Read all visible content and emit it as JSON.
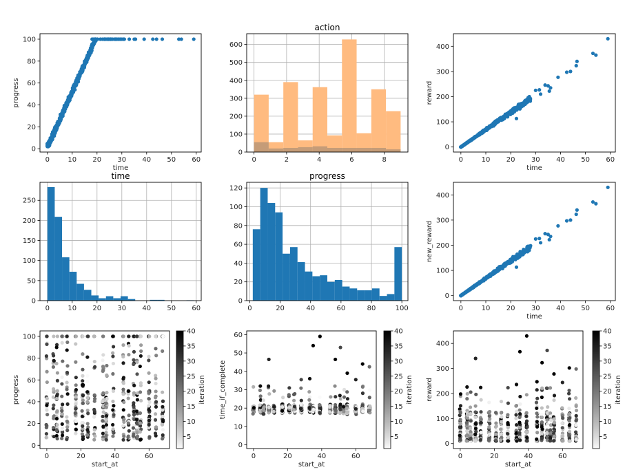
{
  "chart_data": [
    {
      "id": "p1",
      "type": "scatter",
      "title": "",
      "xlabel": "time",
      "ylabel": "progress",
      "xlim": [
        -3,
        62
      ],
      "ylim": [
        -3,
        105
      ],
      "xticks": [
        0,
        10,
        20,
        30,
        40,
        50,
        60
      ],
      "yticks": [
        0,
        20,
        40,
        60,
        80,
        100
      ],
      "color": "#1f77b4",
      "grid": false,
      "series_description": "progress rises linearly from ~0 at time 0 to 100 near time 20, then stays at 100",
      "points_extra": [
        [
          23,
          100
        ],
        [
          24,
          100
        ],
        [
          26,
          100
        ],
        [
          28,
          100
        ],
        [
          30,
          100
        ],
        [
          31,
          100
        ],
        [
          33,
          100
        ],
        [
          35,
          100
        ],
        [
          35.5,
          100
        ],
        [
          39,
          100
        ],
        [
          42.5,
          100
        ],
        [
          44,
          100
        ],
        [
          46.3,
          100
        ],
        [
          53,
          100
        ],
        [
          54,
          100
        ],
        [
          59,
          100
        ]
      ]
    },
    {
      "id": "p2",
      "type": "bar",
      "title": "action",
      "xlabel": "",
      "ylabel": "",
      "xlim": [
        -0.45,
        9.45
      ],
      "ylim": [
        0,
        660
      ],
      "xticks": [
        0,
        2,
        4,
        6,
        8
      ],
      "yticks": [
        0,
        100,
        200,
        300,
        400,
        500,
        600
      ],
      "grid": true,
      "bin_edges": [
        0,
        0.9,
        1.8,
        2.7,
        3.6,
        4.5,
        5.4,
        6.3,
        7.2,
        8.1,
        9.0
      ],
      "series": [
        {
          "name": "action (all)",
          "color": "#ffbb80",
          "values": [
            320,
            55,
            390,
            65,
            362,
            93,
            628,
            105,
            350,
            228
          ]
        },
        {
          "name": "action (subset)",
          "color": "#c59c78",
          "values": [
            55,
            20,
            23,
            27,
            32,
            23,
            23,
            23,
            23,
            15
          ]
        }
      ]
    },
    {
      "id": "p3",
      "type": "scatter",
      "title": "",
      "xlabel": "time",
      "ylabel": "reward",
      "xlim": [
        -3,
        62
      ],
      "ylim": [
        -20,
        450
      ],
      "xticks": [
        0,
        10,
        20,
        30,
        40,
        50,
        60
      ],
      "yticks": [
        0,
        100,
        200,
        300,
        400
      ],
      "color": "#1f77b4",
      "grid": false,
      "series_description": "reward roughly 7 x time",
      "points_extra": [
        [
          39,
          277
        ],
        [
          42.5,
          297
        ],
        [
          44,
          300
        ],
        [
          46.3,
          323
        ],
        [
          46.6,
          340
        ],
        [
          53,
          372
        ],
        [
          54.2,
          365
        ],
        [
          59,
          430
        ],
        [
          33.8,
          246
        ],
        [
          35,
          243
        ],
        [
          35.5,
          222
        ],
        [
          36,
          235
        ],
        [
          30,
          225
        ],
        [
          31.5,
          227
        ],
        [
          32,
          210
        ],
        [
          22.3,
          113
        ],
        [
          27,
          196
        ]
      ]
    },
    {
      "id": "p4",
      "type": "bar",
      "title": "time",
      "xlabel": "",
      "ylabel": "",
      "xlim": [
        -3,
        62
      ],
      "ylim": [
        0,
        295
      ],
      "xticks": [
        0,
        10,
        20,
        30,
        40,
        50,
        60
      ],
      "yticks": [
        0,
        50,
        100,
        150,
        200,
        250
      ],
      "grid": true,
      "color": "#1f77b4",
      "bin_edges": [
        0,
        2.95,
        5.9,
        8.85,
        11.8,
        14.75,
        17.7,
        20.65,
        23.6,
        26.55,
        29.5,
        32.45,
        35.4,
        38.35,
        41.3,
        44.25,
        47.2,
        50.15,
        53.1,
        56.05,
        59.0
      ],
      "values": [
        283,
        209,
        108,
        72,
        42,
        27,
        13,
        6,
        11,
        6,
        11,
        4,
        0,
        0,
        2,
        2,
        0,
        0,
        0,
        1
      ]
    },
    {
      "id": "p5",
      "type": "bar",
      "title": "progress",
      "xlabel": "",
      "ylabel": "",
      "xlim": [
        -2,
        104
      ],
      "ylim": [
        0,
        126
      ],
      "xticks": [
        0,
        20,
        40,
        60,
        80,
        100
      ],
      "yticks": [
        0,
        20,
        40,
        60,
        80,
        100,
        120
      ],
      "grid": true,
      "color": "#1f77b4",
      "bin_edges": [
        2,
        6.9,
        11.8,
        16.7,
        21.6,
        26.5,
        31.4,
        36.3,
        41.2,
        46.1,
        51,
        55.9,
        60.8,
        65.7,
        70.6,
        75.5,
        80.4,
        85.3,
        90.2,
        95.1,
        100
      ],
      "values": [
        76,
        120,
        104,
        94,
        50,
        57,
        41,
        31,
        26,
        27,
        20,
        22,
        15,
        13,
        11,
        11,
        13,
        5,
        7,
        57
      ]
    },
    {
      "id": "p6",
      "type": "scatter",
      "title": "",
      "xlabel": "time",
      "ylabel": "new_reward",
      "xlim": [
        -3,
        62
      ],
      "ylim": [
        -20,
        450
      ],
      "xticks": [
        0,
        10,
        20,
        30,
        40,
        50,
        60
      ],
      "yticks": [
        0,
        100,
        200,
        300,
        400
      ],
      "color": "#1f77b4",
      "grid": false,
      "series_description": "new_reward roughly 7 x time",
      "points_extra": [
        [
          39,
          277
        ],
        [
          42.5,
          297
        ],
        [
          44,
          300
        ],
        [
          46.3,
          323
        ],
        [
          46.6,
          340
        ],
        [
          53,
          372
        ],
        [
          54.2,
          365
        ],
        [
          59,
          430
        ],
        [
          33.8,
          246
        ],
        [
          35,
          243
        ],
        [
          35.5,
          222
        ],
        [
          36,
          235
        ],
        [
          30,
          225
        ],
        [
          31.5,
          227
        ],
        [
          32,
          210
        ],
        [
          22.3,
          113
        ],
        [
          27,
          196
        ]
      ]
    },
    {
      "id": "p7",
      "type": "scatter",
      "title": "",
      "xlabel": "start_at",
      "ylabel": "progress",
      "xlim": [
        -4,
        72
      ],
      "ylim": [
        -3,
        105
      ],
      "xticks": [
        0,
        20,
        40,
        60
      ],
      "yticks": [
        0,
        20,
        40,
        60,
        80,
        100
      ],
      "colormap": "Greys",
      "colorbar_label": "iteration",
      "clim": [
        1,
        40
      ],
      "colorbar_ticks": [
        5,
        10,
        15,
        20,
        25,
        30,
        35,
        40
      ],
      "start_at_values": [
        0,
        4,
        6,
        9,
        12,
        17,
        21,
        24,
        28,
        33,
        35,
        39,
        45,
        48,
        51,
        53,
        55,
        60,
        64,
        68
      ],
      "grid": false
    },
    {
      "id": "p8",
      "type": "scatter",
      "title": "",
      "xlabel": "start_at",
      "ylabel": "time_if_complete",
      "xlim": [
        -4,
        72
      ],
      "ylim": [
        -2,
        62
      ],
      "xticks": [
        0,
        20,
        40,
        60
      ],
      "yticks": [
        0,
        10,
        20,
        30,
        40,
        50,
        60
      ],
      "colormap": "Greys",
      "colorbar_label": "iteration",
      "clim": [
        1,
        40
      ],
      "colorbar_ticks": [
        5,
        10,
        15,
        20,
        25,
        30,
        35,
        40
      ],
      "start_at_values": [
        0,
        4,
        6,
        9,
        12,
        17,
        21,
        24,
        28,
        33,
        35,
        39,
        45,
        48,
        51,
        53,
        55,
        60,
        64,
        68
      ],
      "points_extra": [
        [
          9,
          46.5,
          34
        ],
        [
          33,
          36,
          38
        ],
        [
          35,
          54,
          40
        ],
        [
          39,
          59,
          40
        ],
        [
          48,
          46.5,
          40
        ],
        [
          51,
          53,
          28
        ],
        [
          55,
          39,
          40
        ],
        [
          64,
          44,
          40
        ],
        [
          68,
          42.5,
          22
        ],
        [
          28,
          35.5,
          28
        ],
        [
          60,
          35.5,
          34
        ],
        [
          21,
          31,
          30
        ],
        [
          4,
          32,
          38
        ]
      ],
      "grid": false
    },
    {
      "id": "p9",
      "type": "scatter",
      "title": "",
      "xlabel": "start_at",
      "ylabel": "reward",
      "xlim": [
        -4,
        72
      ],
      "ylim": [
        -20,
        450
      ],
      "xticks": [
        0,
        20,
        40,
        60
      ],
      "yticks": [
        0,
        100,
        200,
        300,
        400
      ],
      "colormap": "Greys",
      "colorbar_label": "iteration",
      "clim": [
        1,
        40
      ],
      "colorbar_ticks": [
        5,
        10,
        15,
        20,
        25,
        30,
        35,
        40
      ],
      "start_at_values": [
        0,
        4,
        6,
        9,
        12,
        17,
        21,
        24,
        28,
        33,
        35,
        39,
        45,
        48,
        51,
        53,
        55,
        60,
        64,
        68
      ],
      "points_extra": [
        [
          9,
          340,
          34
        ],
        [
          35,
          367,
          40
        ],
        [
          39,
          430,
          40
        ],
        [
          51,
          372,
          28
        ],
        [
          48,
          323,
          40
        ],
        [
          55,
          278,
          40
        ],
        [
          64,
          302,
          40
        ],
        [
          68,
          298,
          22
        ],
        [
          33,
          236,
          38
        ],
        [
          28,
          223,
          28
        ],
        [
          60,
          244,
          34
        ],
        [
          4,
          226,
          38
        ],
        [
          12,
          224,
          38
        ],
        [
          45,
          247,
          40
        ]
      ],
      "grid": false
    }
  ]
}
